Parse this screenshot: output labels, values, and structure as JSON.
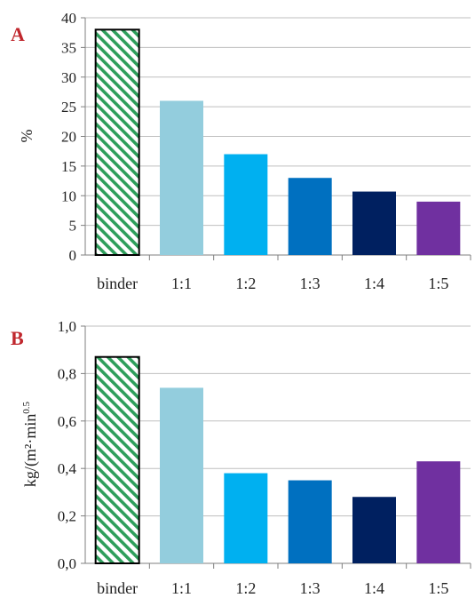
{
  "chart_data": [
    {
      "type": "bar",
      "panel": "A",
      "ylabel": "%",
      "ylim": [
        0,
        40
      ],
      "yticks": [
        "0",
        "5",
        "10",
        "15",
        "20",
        "25",
        "30",
        "35",
        "40"
      ],
      "grid": true,
      "categories": [
        "binder",
        "1:1",
        "1:2",
        "1:3",
        "1:4",
        "1:5"
      ],
      "values": [
        38,
        26,
        17,
        13,
        10.7,
        9
      ],
      "colors": [
        "hatch",
        "#93cddd",
        "#00b0f0",
        "#0070c0",
        "#002060",
        "#7030a0"
      ]
    },
    {
      "type": "bar",
      "panel": "B",
      "ylabel": "kg/(m²·min",
      "ylabel_sup": "0.5",
      "ylim": [
        0,
        1.0
      ],
      "yticks": [
        "0,0",
        "0,2",
        "0,4",
        "0,6",
        "0,8",
        "1,0"
      ],
      "grid": true,
      "categories": [
        "binder",
        "1:1",
        "1:2",
        "1:3",
        "1:4",
        "1:5"
      ],
      "values": [
        0.87,
        0.74,
        0.38,
        0.35,
        0.28,
        0.43
      ],
      "colors": [
        "hatch",
        "#93cddd",
        "#00b0f0",
        "#0070c0",
        "#002060",
        "#7030a0"
      ]
    }
  ]
}
